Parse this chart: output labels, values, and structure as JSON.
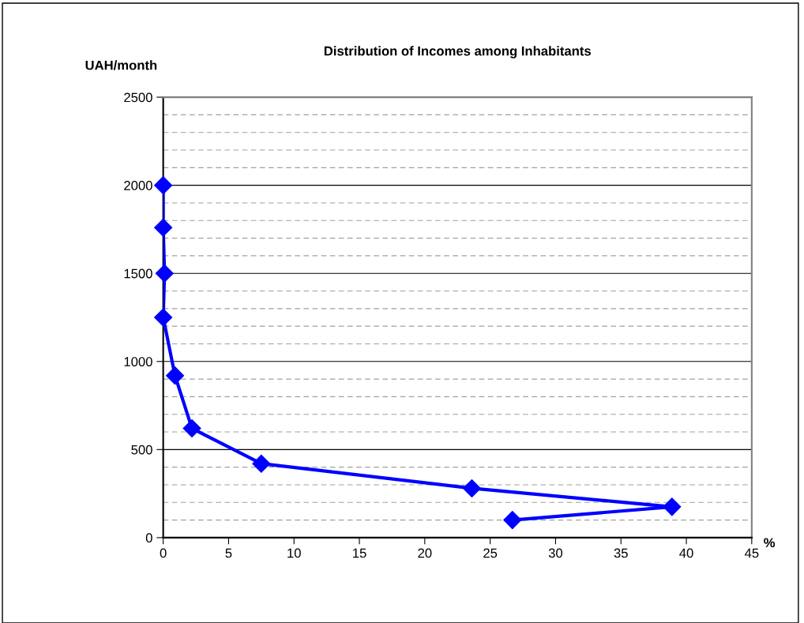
{
  "chart_data": {
    "type": "line",
    "title": "Distribution of Incomes among Inhabitants",
    "xlabel": "%",
    "ylabel": "UAH/month",
    "series": [
      {
        "color": "#0000ff",
        "x": [
          0,
          0,
          0.1,
          0,
          0.9,
          2.2,
          7.5,
          23.6,
          38.9,
          26.7
        ],
        "values": [
          2000,
          1760,
          1500,
          1250,
          920,
          620,
          420,
          280,
          175,
          100
        ]
      }
    ],
    "xlim": [
      0,
      45
    ],
    "xticks": [
      0,
      5,
      10,
      15,
      20,
      25,
      30,
      35,
      40,
      45
    ],
    "ylim": [
      0,
      2500
    ],
    "yticks": [
      0,
      {
        "value": 100,
        "label": null
      },
      {
        "value": 200,
        "label": null
      },
      {
        "value": 300,
        "label": null
      },
      {
        "value": 400,
        "label": null
      },
      500,
      {
        "value": 600,
        "label": null
      },
      {
        "value": 700,
        "label": null
      },
      {
        "value": 800,
        "label": null
      },
      {
        "value": 900,
        "label": null
      },
      1000,
      {
        "value": 1100,
        "label": null
      },
      {
        "value": 1200,
        "label": null
      },
      {
        "value": 1300,
        "label": null
      },
      {
        "value": 1400,
        "label": null
      },
      1500,
      {
        "value": 1600,
        "label": null
      },
      {
        "value": 1700,
        "label": null
      },
      {
        "value": 1800,
        "label": null
      },
      {
        "value": 1900,
        "label": null
      },
      2000,
      {
        "value": 2100,
        "label": null
      },
      {
        "value": 2200,
        "label": null
      },
      {
        "value": 2300,
        "label": null
      },
      {
        "value": 2400,
        "label": null
      },
      2500
    ],
    "grid": "y",
    "marker": "diamond",
    "line_style": "solid",
    "legend": false
  }
}
